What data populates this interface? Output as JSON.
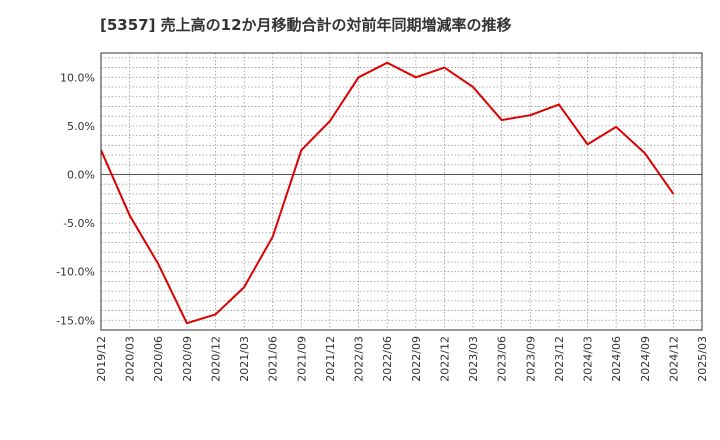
{
  "chart_data": {
    "type": "line",
    "title": "[5357]  売上高の12か月移動合計の対前年同期増減率の推移",
    "xlabel": "",
    "ylabel": "",
    "ylim": [
      -16,
      12.5
    ],
    "yticks": [
      10,
      5,
      0,
      -5,
      -10,
      -15
    ],
    "ytick_labels": [
      "10.0%",
      "5.0%",
      "0.0%",
      "-5.0%",
      "-10.0%",
      "-15.0%"
    ],
    "x_tick_labels": [
      "2019/12",
      "2020/03",
      "2020/06",
      "2020/09",
      "2020/12",
      "2021/03",
      "2021/06",
      "2021/09",
      "2021/12",
      "2022/03",
      "2022/06",
      "2022/09",
      "2022/12",
      "2023/03",
      "2023/06",
      "2023/09",
      "2023/12",
      "2024/03",
      "2024/06",
      "2024/09",
      "2024/12",
      "2025/03"
    ],
    "grid": true,
    "legend": "none",
    "series": [
      {
        "name": "対前年同期増減率",
        "color": "#dd0000",
        "x": [
          "2019/12",
          "2020/03",
          "2020/06",
          "2020/09",
          "2020/12",
          "2021/03",
          "2021/06",
          "2021/09",
          "2021/12",
          "2022/03",
          "2022/06",
          "2022/09",
          "2022/12",
          "2023/03",
          "2023/06",
          "2023/09",
          "2023/12",
          "2024/03",
          "2024/06",
          "2024/09",
          "2024/12"
        ],
        "values": [
          2.5,
          -4.2,
          -9.2,
          -15.3,
          -14.4,
          -11.6,
          -6.4,
          2.5,
          5.5,
          10.0,
          11.5,
          10.0,
          11.0,
          9.0,
          5.6,
          6.1,
          7.2,
          3.1,
          4.9,
          2.2,
          -2.0
        ]
      }
    ]
  }
}
